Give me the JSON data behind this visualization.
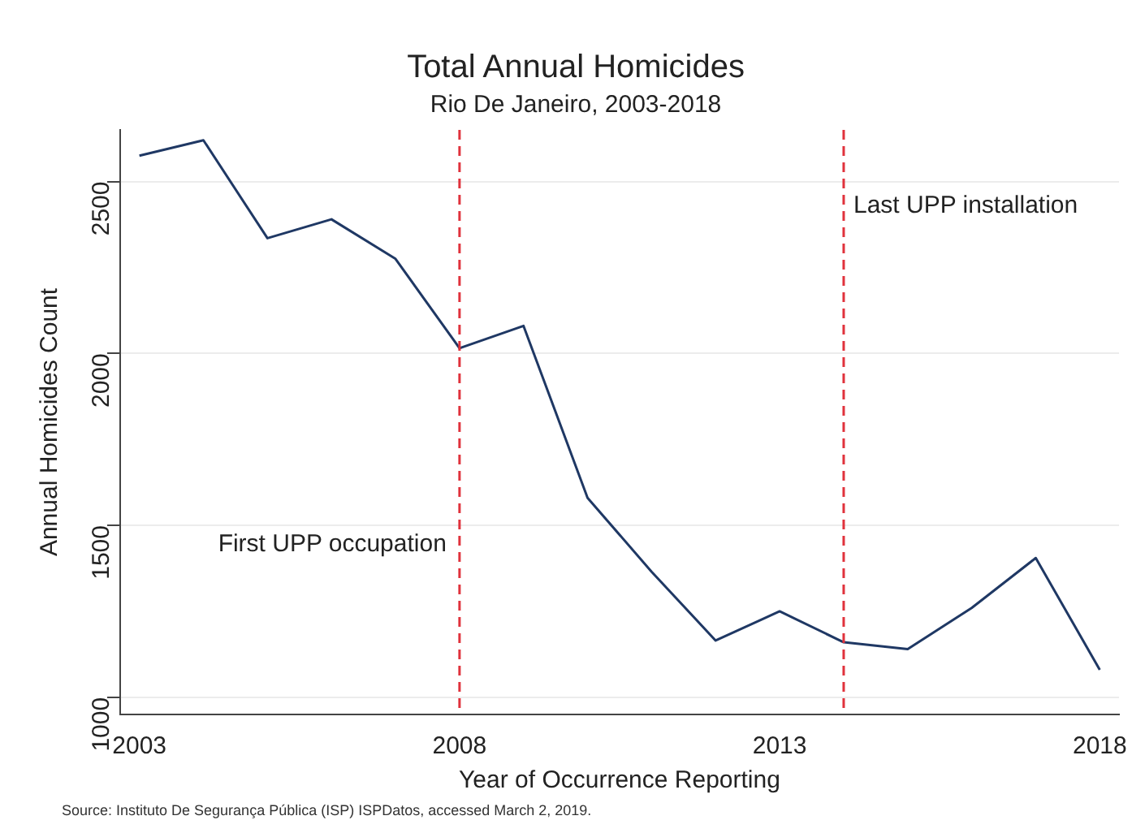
{
  "chart_data": {
    "type": "line",
    "title": "Total Annual Homicides",
    "subtitle": "Rio De Janeiro, 2003-2018",
    "xlabel": "Year of Occurrence Reporting",
    "ylabel": "Annual Homicides Count",
    "x": [
      2003,
      2004,
      2005,
      2006,
      2007,
      2008,
      2009,
      2010,
      2011,
      2012,
      2013,
      2014,
      2015,
      2016,
      2017,
      2018
    ],
    "series": [
      {
        "color": "#1f3864",
        "values": [
          2575,
          2620,
          2335,
          2390,
          2275,
          2015,
          2080,
          1580,
          1365,
          1165,
          1250,
          1160,
          1140,
          1260,
          1405,
          1080
        ]
      }
    ],
    "xlim": [
      2002.7,
      2018.3
    ],
    "xticks": [
      2003,
      2008,
      2013,
      2018
    ],
    "ylim": [
      950,
      2650
    ],
    "yticks": [
      1000,
      1500,
      2000,
      2500
    ],
    "grid": "y",
    "legend": false,
    "marker": "none",
    "line_style": "solid",
    "ref_lines": [
      {
        "axis": "x",
        "value": 2008,
        "label": "First UPP occupation",
        "color": "#e0323c",
        "line_style": "dashed"
      },
      {
        "axis": "x",
        "value": 2014,
        "label": "Last UPP installation",
        "color": "#e0323c",
        "line_style": "dashed"
      }
    ],
    "annotations": [
      "Source: Instituto De Segurança Pública (ISP) ISPDatos, accessed March 2, 2019."
    ]
  }
}
